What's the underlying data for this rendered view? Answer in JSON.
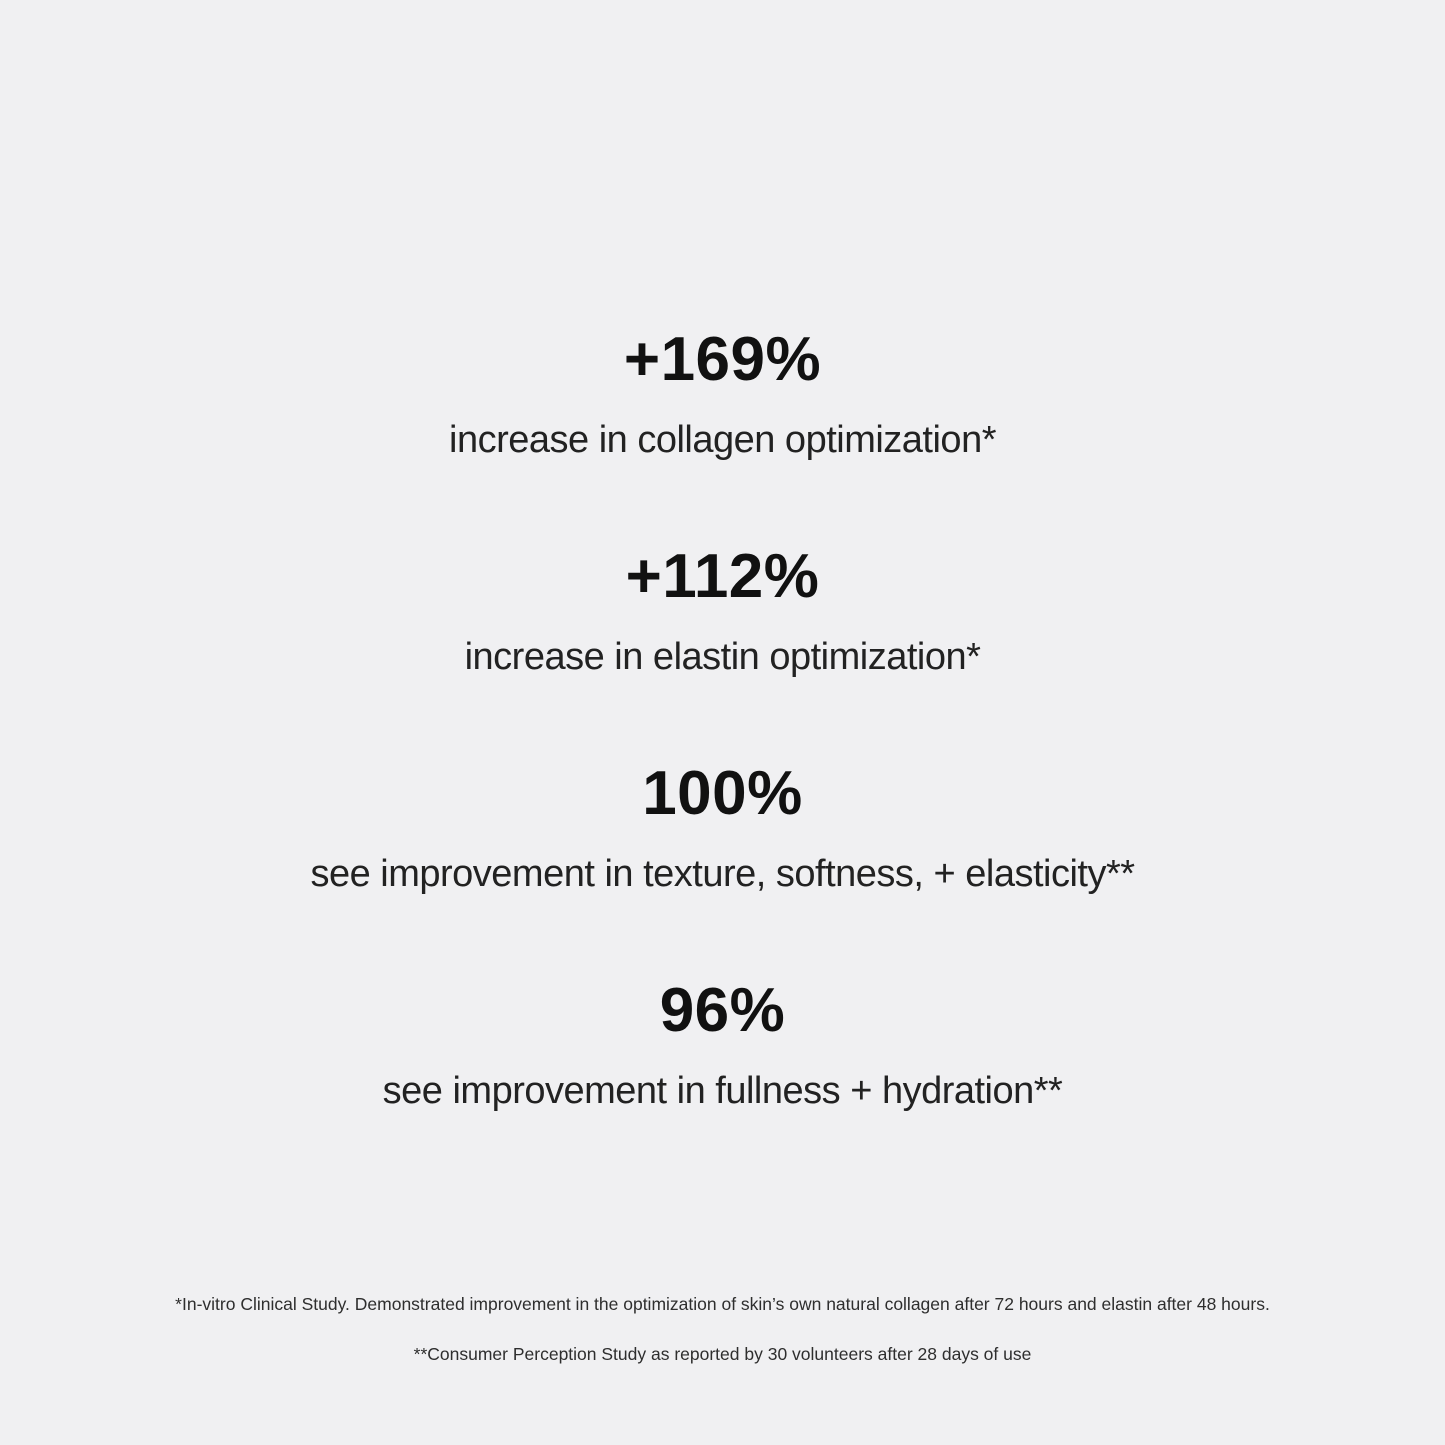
{
  "page": {
    "background_color": "#f0f0f2",
    "number_color": "#111111",
    "label_color": "#222222",
    "footnote_color": "#2e2e2e"
  },
  "stats": [
    {
      "value": "+169%",
      "label": "increase in collagen optimization*"
    },
    {
      "value": "+112%",
      "label": "increase in elastin optimization*"
    },
    {
      "value": "100%",
      "label": "see improvement in texture, softness, + elasticity**"
    },
    {
      "value": "96%",
      "label": "see improvement in fullness + hydration**"
    }
  ],
  "footnotes": [
    {
      "text": "*In-vitro Clinical Study. Demonstrated improvement in the optimization of skin’s own natural collagen after 72 hours and elastin after 48 hours."
    },
    {
      "text": "**Consumer Perception Study as reported by 30 volunteers after 28 days of use"
    }
  ]
}
